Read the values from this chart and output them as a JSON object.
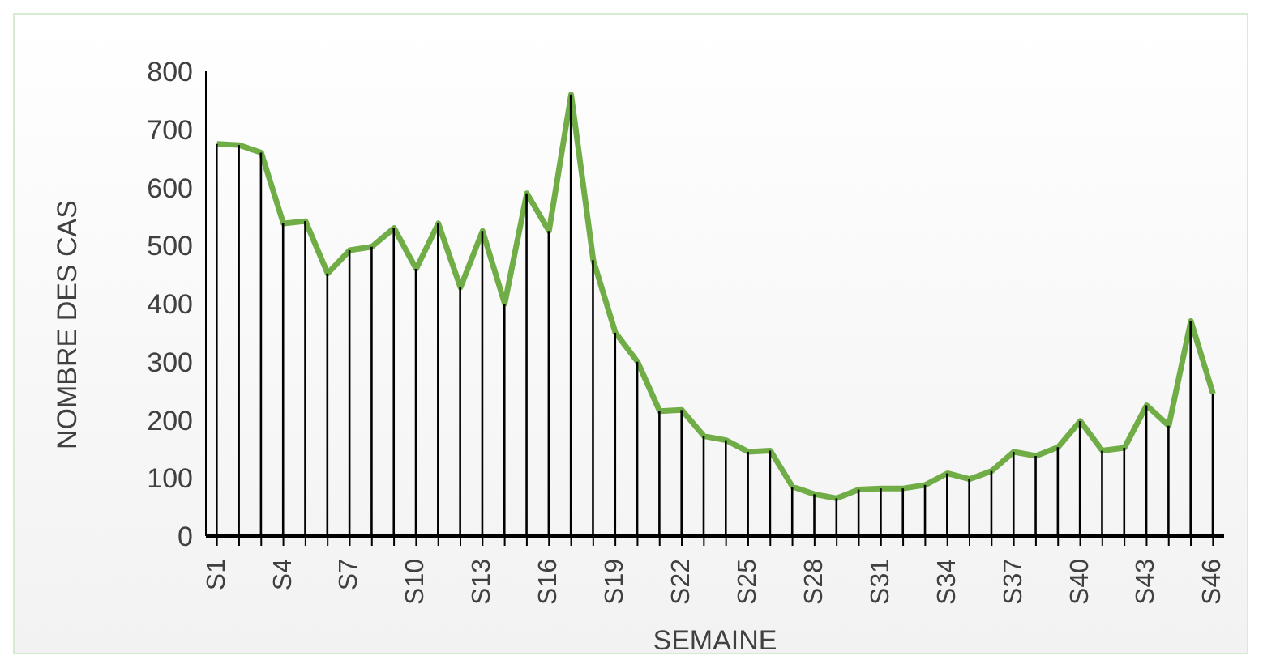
{
  "chart_data": {
    "type": "line",
    "xlabel": "SEMAINE",
    "ylabel": "NOMBRE DES CAS",
    "categories": [
      "S1",
      null,
      null,
      "S4",
      null,
      null,
      "S7",
      null,
      null,
      "S10",
      null,
      null,
      "S13",
      null,
      null,
      "S16",
      null,
      null,
      "S19",
      null,
      null,
      "S22",
      null,
      null,
      "S25",
      null,
      null,
      "S28",
      null,
      null,
      "S31",
      null,
      null,
      "S34",
      null,
      null,
      "S37",
      null,
      null,
      "S40",
      null,
      null,
      "S43",
      null,
      null,
      "S46"
    ],
    "series": [
      {
        "color": "#70ad47",
        "values": [
          675,
          673,
          660,
          538,
          542,
          452,
          492,
          498,
          530,
          460,
          538,
          428,
          525,
          400,
          590,
          525,
          760,
          475,
          350,
          300,
          215,
          217,
          172,
          165,
          145,
          147,
          85,
          72,
          65,
          80,
          82,
          82,
          88,
          108,
          98,
          112,
          145,
          138,
          153,
          198,
          147,
          152,
          225,
          190,
          370,
          245
        ]
      },
      {
        "type": "bar",
        "color": "#000000",
        "values": [
          675,
          673,
          660,
          538,
          542,
          452,
          492,
          498,
          530,
          460,
          538,
          428,
          525,
          400,
          590,
          525,
          760,
          475,
          350,
          300,
          215,
          217,
          172,
          165,
          145,
          147,
          85,
          72,
          65,
          80,
          82,
          82,
          88,
          108,
          98,
          112,
          145,
          138,
          153,
          198,
          147,
          152,
          225,
          190,
          370,
          245
        ]
      }
    ],
    "ylim": [
      0,
      800
    ],
    "yticks": [
      0,
      100,
      200,
      300,
      400,
      500,
      600,
      700,
      800
    ],
    "marker": "none",
    "line_style": "solid"
  }
}
